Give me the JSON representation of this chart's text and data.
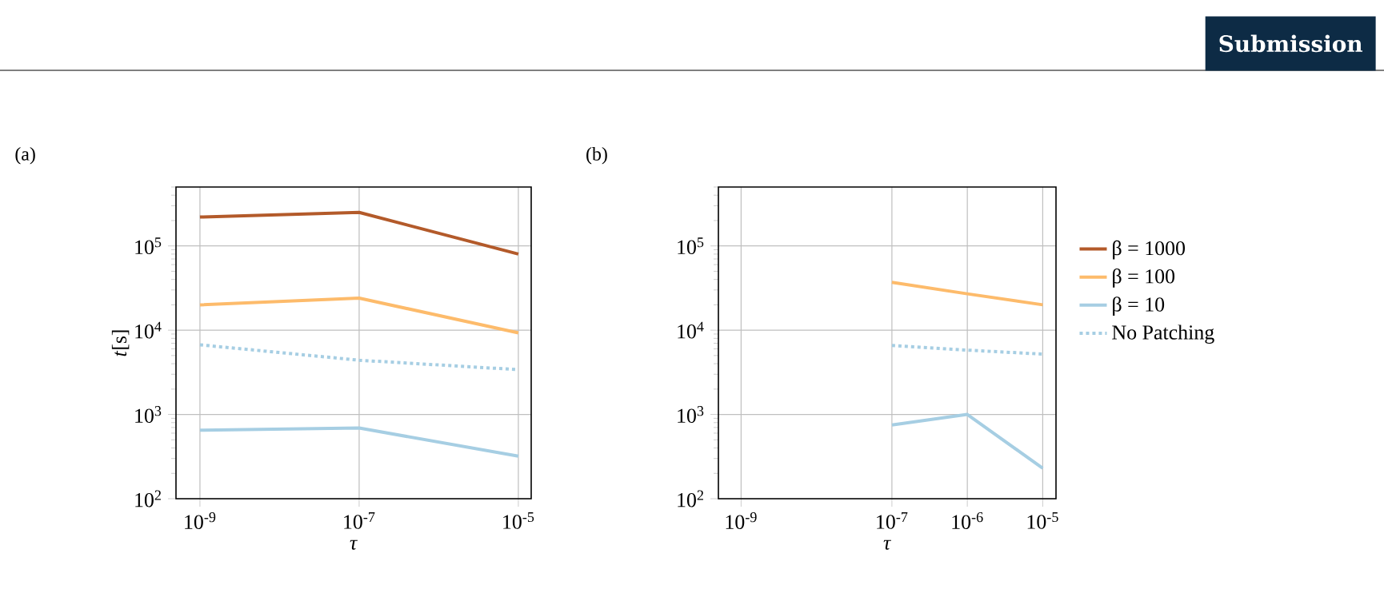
{
  "chart_data": [
    {
      "type": "line",
      "title": "(a)",
      "xlabel": "*τ*",
      "ylabel": "*t*[s]",
      "log": "xy",
      "grid": true,
      "xlim": [
        5e-10,
        1.45e-05
      ],
      "ylim": [
        100,
        500000
      ],
      "xticks": [
        {
          "value": 1e-09,
          "label": "10$^{-9}$"
        },
        {
          "value": 1e-07,
          "label": "10$^{-7}$"
        },
        {
          "value": 1e-05,
          "label": "10$^{-5}$"
        }
      ],
      "yticks": [
        {
          "value": 100,
          "label": "10$^{2}$"
        },
        {
          "value": 1000,
          "label": "10$^{3}$"
        },
        {
          "value": 10000,
          "label": "10$^{4}$"
        },
        {
          "value": 100000,
          "label": "10$^{5}$"
        }
      ],
      "x": [
        1e-09,
        1e-07,
        1e-05
      ],
      "series": [
        {
          "color": "#b35a2a",
          "line_style": "solid",
          "values": [
            220000,
            250000,
            80000
          ]
        },
        {
          "color": "#fdbb6b",
          "line_style": "solid",
          "values": [
            20000,
            24000,
            9300
          ]
        },
        {
          "color": "#a6cee3",
          "line_style": "dotted",
          "values": [
            6700,
            4400,
            3400
          ]
        },
        {
          "color": "#a6cee3",
          "line_style": "solid",
          "values": [
            650,
            690,
            320
          ]
        }
      ]
    },
    {
      "type": "line",
      "title": "(b)",
      "xlabel": "*τ*",
      "log": "xy",
      "grid": true,
      "legend": "right",
      "xlim": [
        5e-10,
        1.5e-05
      ],
      "ylim": [
        100,
        500000
      ],
      "xticks": [
        {
          "value": 1e-09,
          "label": "10$^{-9}$"
        },
        {
          "value": 1e-07,
          "label": "10$^{-7}$"
        },
        {
          "value": 1e-06,
          "label": "10$^{-6}$"
        },
        {
          "value": 1e-05,
          "label": "10$^{-5}$"
        }
      ],
      "yticks": [
        {
          "value": 100,
          "label": "10$^{2}$"
        },
        {
          "value": 1000,
          "label": "10$^{3}$"
        },
        {
          "value": 10000,
          "label": "10$^{4}$"
        },
        {
          "value": 100000,
          "label": "10$^{5}$"
        }
      ],
      "x": [
        1e-07,
        1e-06,
        1e-05
      ],
      "annotations": [
        "Submission"
      ],
      "series": [
        {
          "name": "β =  1000",
          "color": "#b35a2a",
          "line_style": "solid",
          "values": [
            null,
            null,
            null
          ]
        },
        {
          "name": "β =  100",
          "color": "#fdbb6b",
          "line_style": "solid",
          "values": [
            37000,
            27000,
            20000
          ]
        },
        {
          "name": "β =  10",
          "color": "#a6cee3",
          "line_style": "solid",
          "values": [
            750,
            1000,
            230
          ]
        },
        {
          "name": "No Patching",
          "color": "#a6cee3",
          "line_style": "dotted",
          "values": [
            6600,
            5800,
            5200
          ]
        }
      ]
    }
  ]
}
